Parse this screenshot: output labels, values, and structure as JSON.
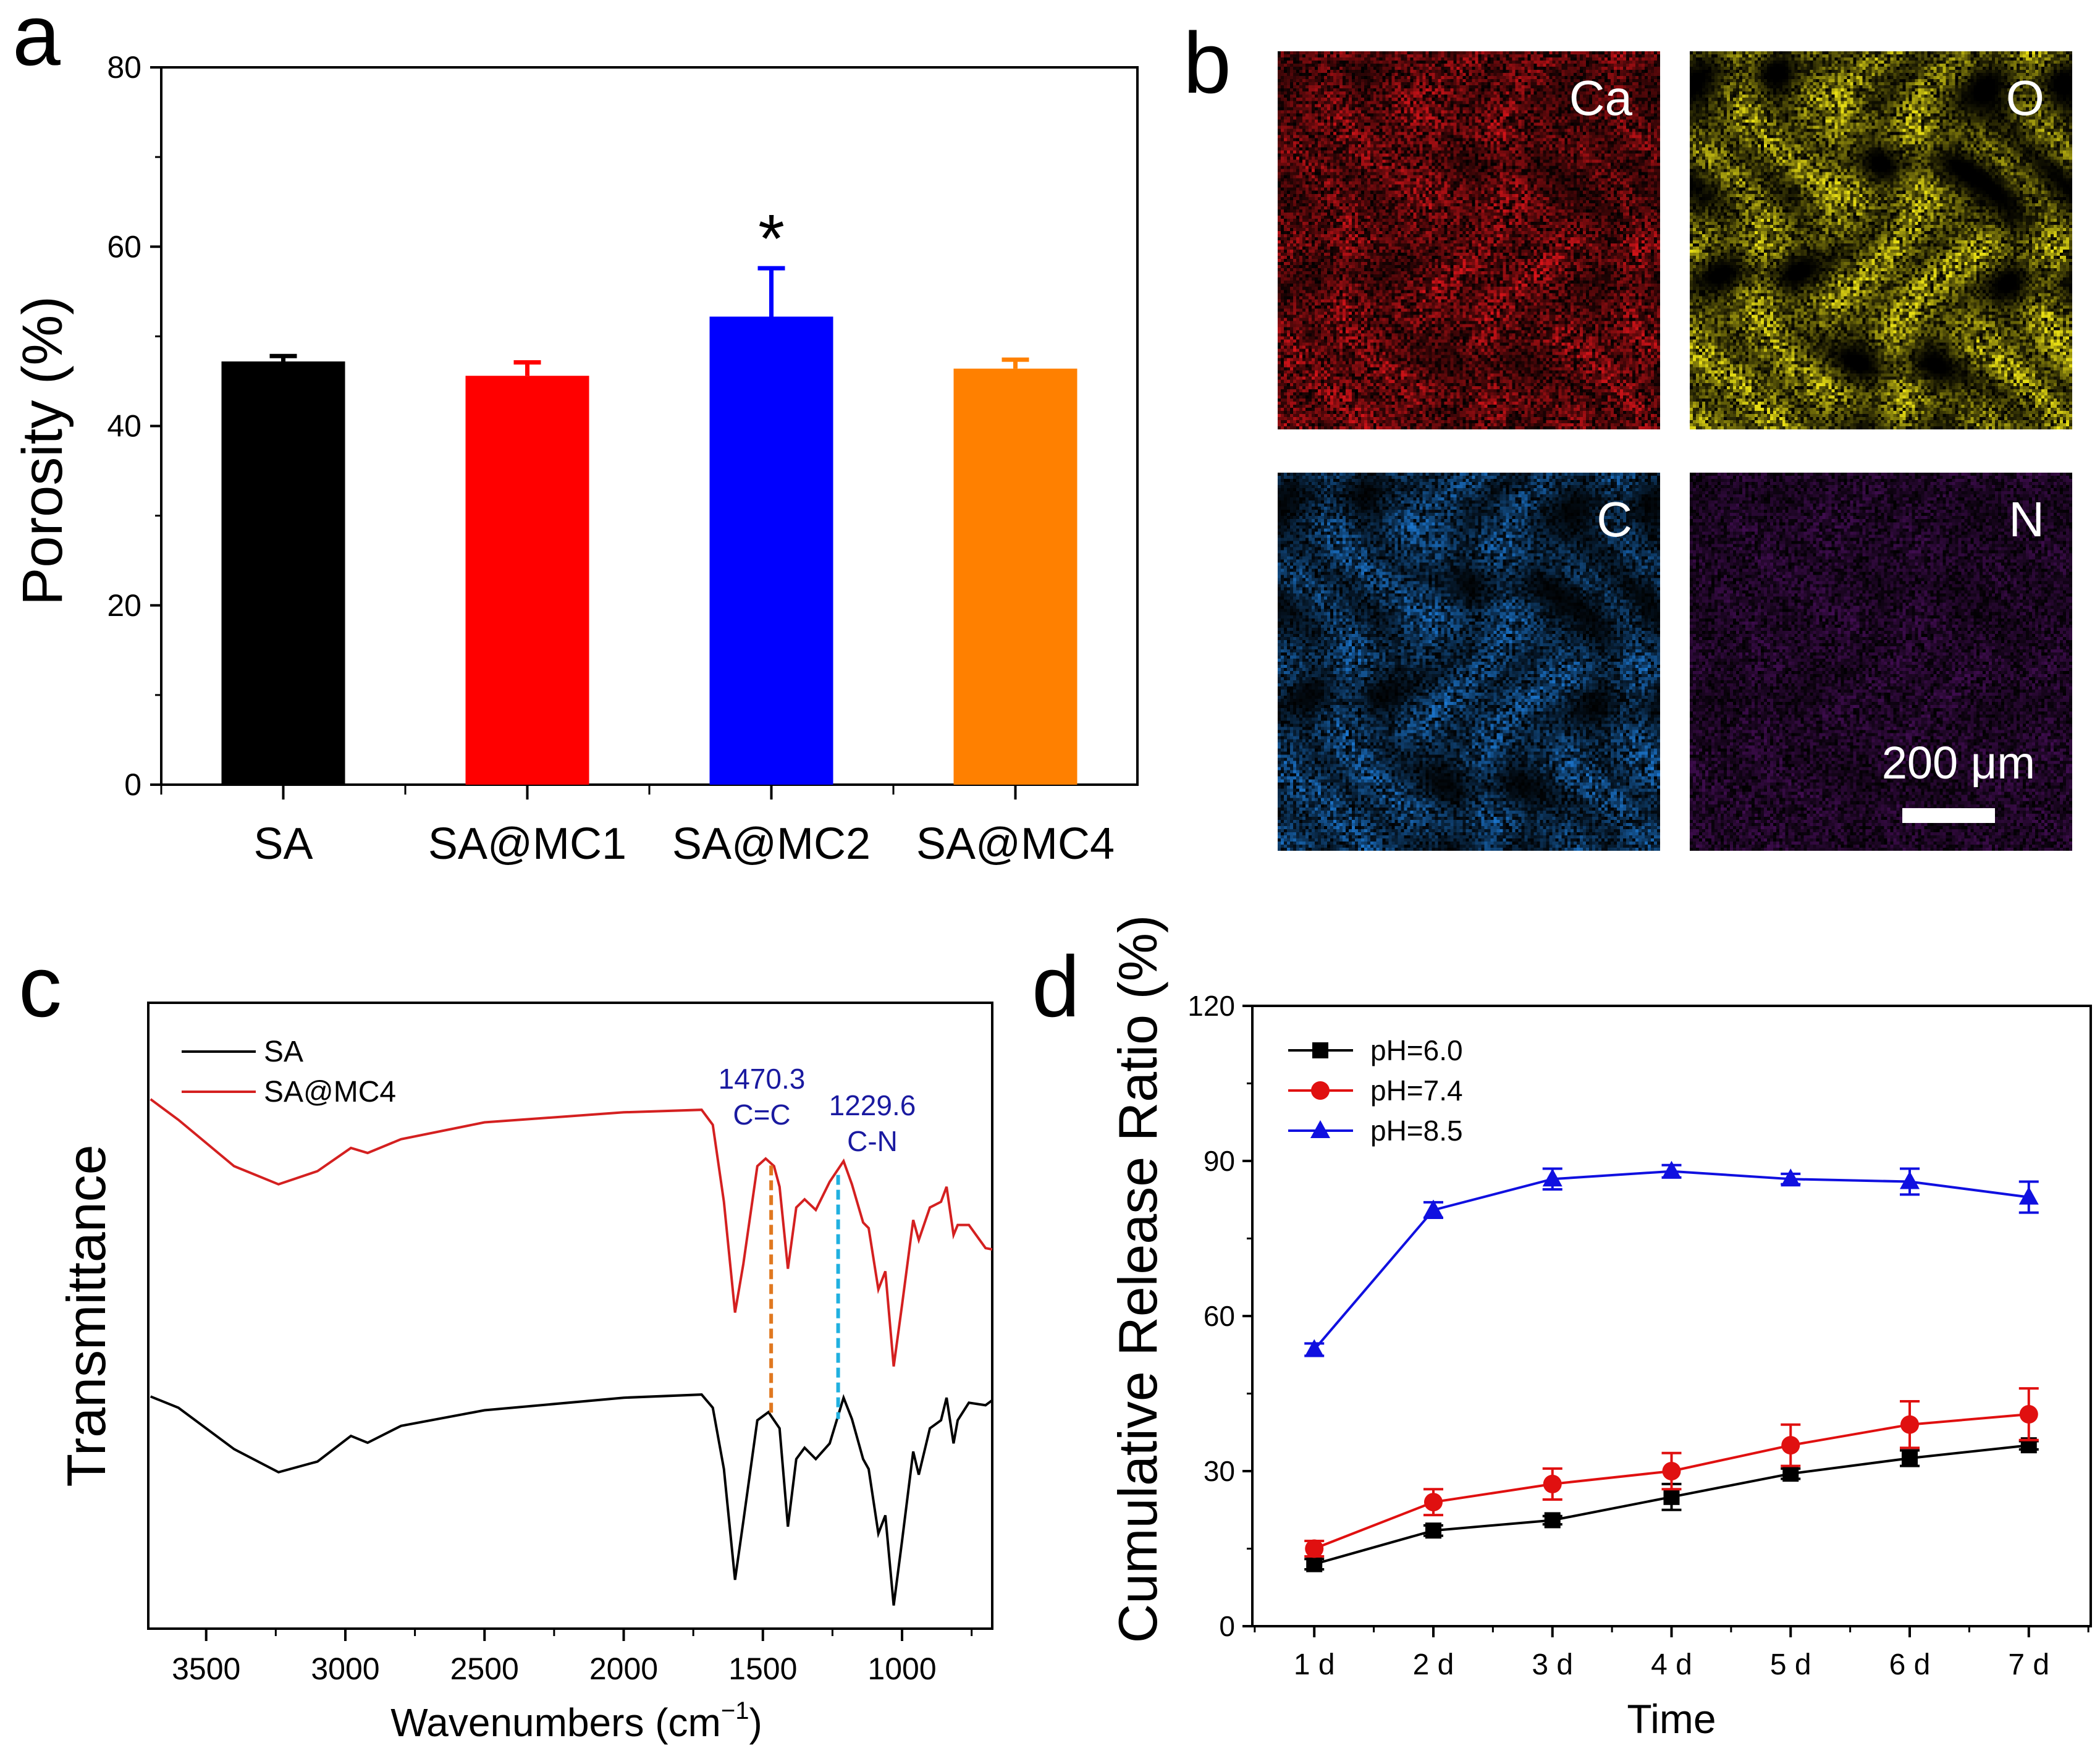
{
  "panel_labels": {
    "a": "a",
    "b": "b",
    "c": "c",
    "d": "d"
  },
  "panel_b": {
    "maps": [
      {
        "element": "Ca",
        "color": "#e0141a"
      },
      {
        "element": "O",
        "color": "#e6dc14"
      },
      {
        "element": "C",
        "color": "#1c78d2"
      },
      {
        "element": "N",
        "color": "#a020c8"
      }
    ],
    "scale_bar": "200 μm"
  },
  "chart_data": [
    {
      "id": "a",
      "type": "bar",
      "title": "",
      "xlabel": "",
      "ylabel": "Porosity (%)",
      "categories": [
        "SA",
        "SA@MC1",
        "SA@MC2",
        "SA@MC4"
      ],
      "values": [
        47.2,
        45.6,
        52.2,
        46.4
      ],
      "errors": [
        0.6,
        1.5,
        5.4,
        1.0
      ],
      "colors": [
        "#000000",
        "#ff0000",
        "#0000ff",
        "#ff8000"
      ],
      "significance": [
        "",
        "",
        "*",
        ""
      ],
      "ylim": [
        0,
        80
      ],
      "yticks": [
        0,
        20,
        40,
        60,
        80
      ]
    },
    {
      "id": "c",
      "type": "line",
      "xlabel": "Wavenumbers (cm",
      "xlabel_sup": "−1",
      "xlabel_end": ")",
      "ylabel": "Transmittance",
      "xlim": [
        3708,
        676
      ],
      "ylim": [
        0,
        100
      ],
      "xticks": [
        3500,
        3000,
        2500,
        2000,
        1500,
        1000
      ],
      "legend": "top-left",
      "series": [
        {
          "name": "SA",
          "color": "#000000",
          "x": [
            3700,
            3600,
            3400,
            3240,
            3100,
            2980,
            2920,
            2800,
            2500,
            2000,
            1720,
            1680,
            1640,
            1600,
            1570,
            1520,
            1480,
            1440,
            1410,
            1380,
            1350,
            1310,
            1260,
            1210,
            1180,
            1140,
            1120,
            1085,
            1060,
            1030,
            1000,
            960,
            940,
            900,
            860,
            840,
            815,
            800,
            760,
            700,
            676
          ],
          "y": [
            37.1,
            35.3,
            28.7,
            25.0,
            26.7,
            30.8,
            29.7,
            32.4,
            34.9,
            36.9,
            37.4,
            35.3,
            25.5,
            7.8,
            17.2,
            33.3,
            34.6,
            32.0,
            16.3,
            27.1,
            28.9,
            27.1,
            29.6,
            36.9,
            33.5,
            27.1,
            25.5,
            15.2,
            18.1,
            3.7,
            14.0,
            28.3,
            24.6,
            32.0,
            33.3,
            36.9,
            29.6,
            33.3,
            36.1,
            35.7,
            36.5
          ]
        },
        {
          "name": "SA@MC4",
          "color": "#d42020",
          "x": [
            3700,
            3600,
            3400,
            3240,
            3100,
            2980,
            2920,
            2800,
            2500,
            2000,
            1720,
            1680,
            1640,
            1600,
            1570,
            1520,
            1490,
            1460,
            1440,
            1410,
            1380,
            1350,
            1310,
            1260,
            1210,
            1180,
            1140,
            1120,
            1085,
            1060,
            1030,
            1000,
            960,
            940,
            900,
            860,
            840,
            815,
            800,
            760,
            700,
            676
          ],
          "y": [
            84.6,
            81.3,
            73.9,
            71.0,
            73.1,
            76.8,
            76.0,
            78.2,
            80.9,
            82.5,
            82.9,
            80.5,
            68.2,
            50.5,
            58.3,
            73.9,
            75.1,
            73.9,
            70.6,
            57.5,
            67.3,
            68.6,
            66.9,
            71.4,
            74.7,
            71.0,
            64.9,
            64.0,
            54.2,
            57.1,
            41.9,
            51.7,
            65.3,
            62.1,
            67.3,
            68.2,
            70.6,
            62.9,
            64.5,
            64.5,
            60.8,
            60.6
          ]
        }
      ],
      "annotations": [
        {
          "x": 1470.3,
          "value": "1470.3",
          "bond": "C=C",
          "line_color": "#e07820",
          "text_color": "#1a1aa0",
          "y_top": 74,
          "y_bottom": 34.5
        },
        {
          "x": 1229.6,
          "value": "1229.6",
          "bond": "C-N",
          "line_color": "#20b0e0",
          "text_color": "#1a1aa0",
          "y_top": 72.5,
          "y_bottom": 33.5
        }
      ]
    },
    {
      "id": "d",
      "type": "line",
      "xlabel": "Time",
      "ylabel": "Cumulative Release Ratio (%)",
      "categories": [
        "1 d",
        "2 d",
        "3 d",
        "4 d",
        "5 d",
        "6 d",
        "7 d"
      ],
      "ylim": [
        0,
        120
      ],
      "yticks": [
        0,
        30,
        60,
        90,
        120
      ],
      "legend": "top-left",
      "series": [
        {
          "name": "pH=6.0",
          "color": "#000000",
          "marker": "square",
          "values": [
            12,
            18.5,
            20.5,
            25,
            29.5,
            32.5,
            35
          ],
          "errors": [
            1,
            1,
            0.8,
            2.5,
            1,
            1.5,
            0.8
          ]
        },
        {
          "name": "pH=7.4",
          "color": "#e01010",
          "marker": "circle",
          "values": [
            15,
            24,
            27.5,
            30,
            35,
            39,
            41
          ],
          "errors": [
            1.5,
            2.5,
            3,
            3.5,
            4,
            4.5,
            5
          ]
        },
        {
          "name": "pH=8.5",
          "color": "#1010e0",
          "marker": "triangle",
          "values": [
            53.5,
            80.5,
            86.5,
            88,
            86.5,
            86,
            83
          ],
          "errors": [
            1.2,
            1.5,
            2,
            1.2,
            1,
            2.5,
            3
          ]
        }
      ]
    }
  ]
}
